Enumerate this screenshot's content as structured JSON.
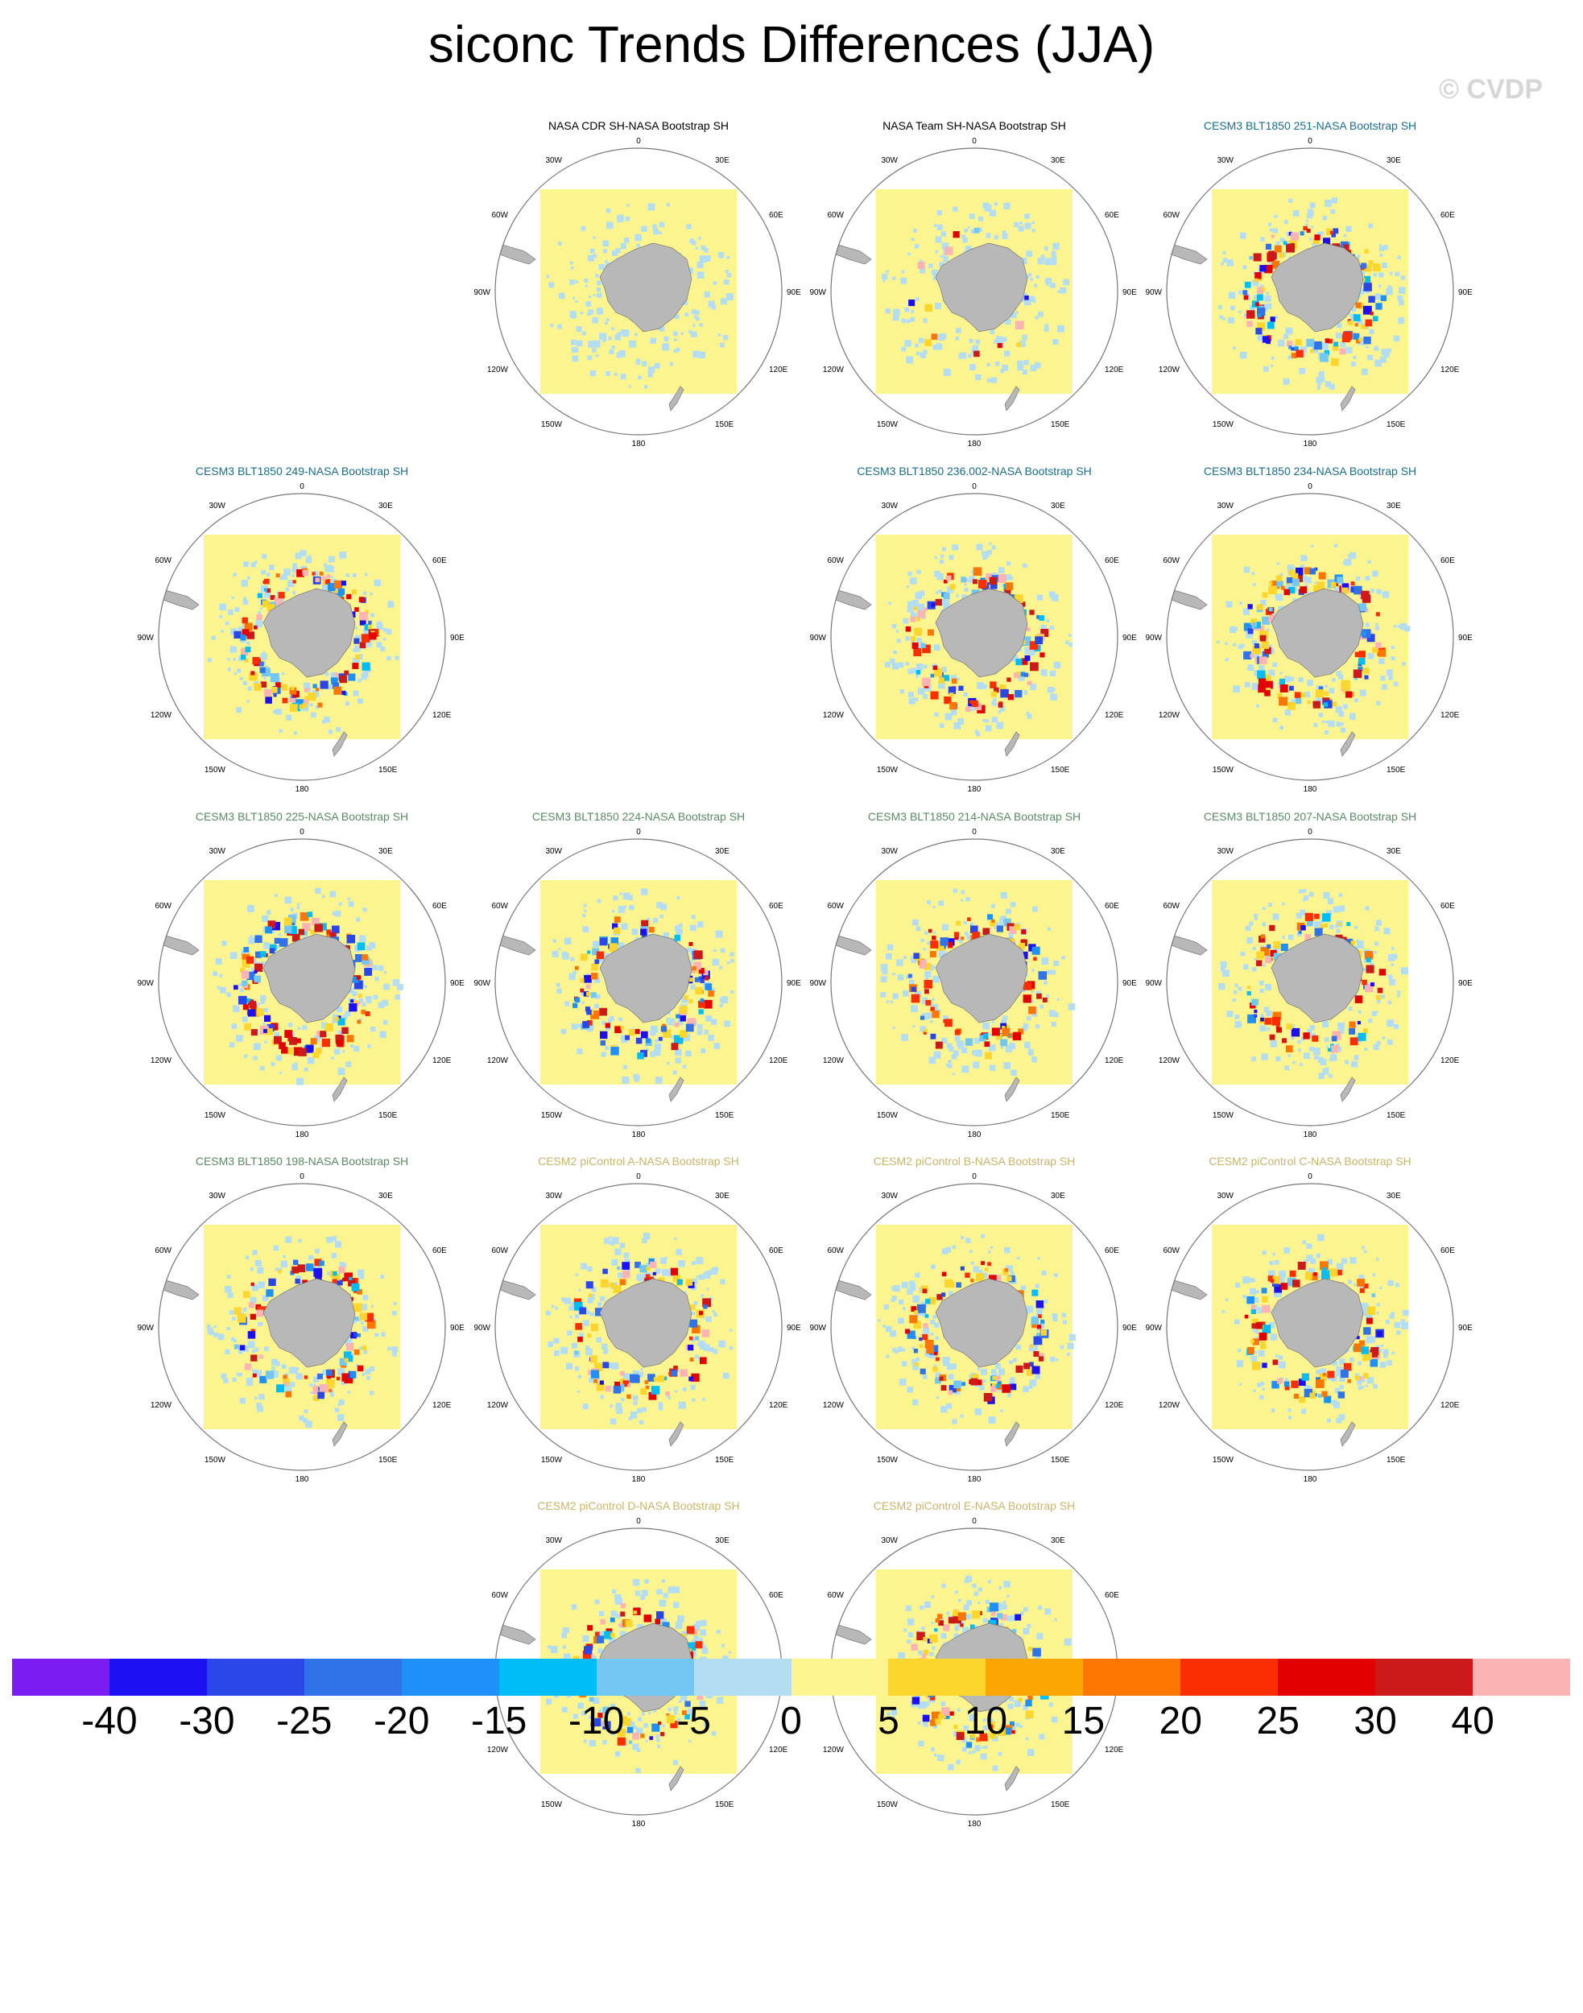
{
  "title": "siconc Trends Differences (JJA)",
  "watermark": "© CVDP",
  "map_labels": {
    "top": "0",
    "bottom": "180",
    "left": "90W",
    "right": "90E",
    "upper_left_1": "30W",
    "upper_left_2": "60W",
    "upper_right_1": "30E",
    "upper_right_2": "60E",
    "lower_left_1": "120W",
    "lower_left_2": "150W",
    "lower_right_1": "120E",
    "lower_right_2": "150E"
  },
  "panels": [
    {
      "title": "NASA CDR SH-NASA Bootstrap SH",
      "title_color": "#000000",
      "intensity": 0.0
    },
    {
      "title": "NASA Team SH-NASA Bootstrap SH",
      "title_color": "#000000",
      "intensity": 0.1
    },
    {
      "title": "CESM3 BLT1850 251-NASA Bootstrap SH",
      "title_color": "#1a6e8a",
      "intensity": 0.9
    },
    {
      "title": "CESM3 BLT1850 249-NASA Bootstrap SH",
      "title_color": "#1a6e8a",
      "intensity": 0.85
    },
    {
      "title": "CESM3 BLT1850 236.002-NASA Bootstrap SH",
      "title_color": "#1a6e8a",
      "intensity": 0.8
    },
    {
      "title": "CESM3 BLT1850 234-NASA Bootstrap SH",
      "title_color": "#1a6e8a",
      "intensity": 0.9
    },
    {
      "title": "CESM3 BLT1850 225-NASA Bootstrap SH",
      "title_color": "#5a8a64",
      "intensity": 0.9
    },
    {
      "title": "CESM3 BLT1850 224-NASA Bootstrap SH",
      "title_color": "#5a8a64",
      "intensity": 0.8
    },
    {
      "title": "CESM3 BLT1850 214-NASA Bootstrap SH",
      "title_color": "#5a8a64",
      "intensity": 0.7
    },
    {
      "title": "CESM3 BLT1850 207-NASA Bootstrap SH",
      "title_color": "#5a8a64",
      "intensity": 0.6
    },
    {
      "title": "CESM3 BLT1850 198-NASA Bootstrap SH",
      "title_color": "#5a8a64",
      "intensity": 0.7
    },
    {
      "title": "CESM2 piControl A-NASA Bootstrap SH",
      "title_color": "#c9b56a",
      "intensity": 0.65
    },
    {
      "title": "CESM2 piControl B-NASA Bootstrap SH",
      "title_color": "#c9b56a",
      "intensity": 0.7
    },
    {
      "title": "CESM2 piControl C-NASA Bootstrap SH",
      "title_color": "#c9b56a",
      "intensity": 0.7
    },
    {
      "title": "CESM2 piControl D-NASA Bootstrap SH",
      "title_color": "#c9b56a",
      "intensity": 0.55
    },
    {
      "title": "CESM2 piControl E-NASA Bootstrap SH",
      "title_color": "#c9b56a",
      "intensity": 0.65
    }
  ],
  "colorbar": {
    "colors": [
      "#7b1cf2",
      "#1c10f2",
      "#2a45e8",
      "#3072e8",
      "#1e90f7",
      "#00bdf7",
      "#72c7f3",
      "#b3ddf3",
      "#fcf48f",
      "#fcd62c",
      "#fca602",
      "#fc7602",
      "#fb2e02",
      "#e20000",
      "#cc1919",
      "#fcb3b3"
    ],
    "labels": [
      "-40",
      "-30",
      "-25",
      "-20",
      "-15",
      "-10",
      "-5",
      "0",
      "5",
      "10",
      "15",
      "20",
      "25",
      "30",
      "40"
    ]
  }
}
